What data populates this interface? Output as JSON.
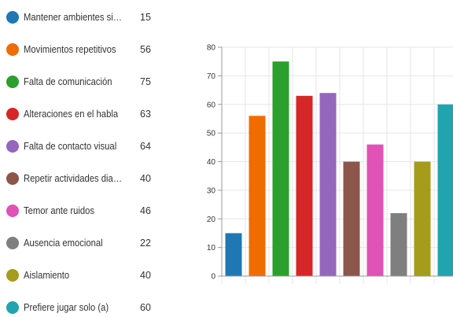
{
  "chart_data": {
    "type": "bar",
    "categories": [
      "Mantener ambientes sin camb...",
      "Movimientos repetitivos",
      "Falta de comunicación",
      "Alteraciones en el habla",
      "Falta de contacto visual",
      "Repetir actividades diariamente",
      "Temor ante ruidos",
      "Ausencia emocional",
      "Aislamiento",
      "Prefiere jugar solo (a)"
    ],
    "values": [
      15,
      56,
      75,
      63,
      64,
      40,
      46,
      22,
      40,
      60
    ],
    "colors": [
      "#1f77b4",
      "#ef6c00",
      "#2ca02c",
      "#d62728",
      "#9467bd",
      "#8c564b",
      "#e052b6",
      "#7f7f7f",
      "#a59c1b",
      "#21a3b0"
    ],
    "yticks": [
      "0",
      "10",
      "20",
      "30",
      "40",
      "50",
      "60",
      "70",
      "80"
    ],
    "ylim": [
      0,
      80
    ],
    "grid": true,
    "legend_position": "left"
  }
}
